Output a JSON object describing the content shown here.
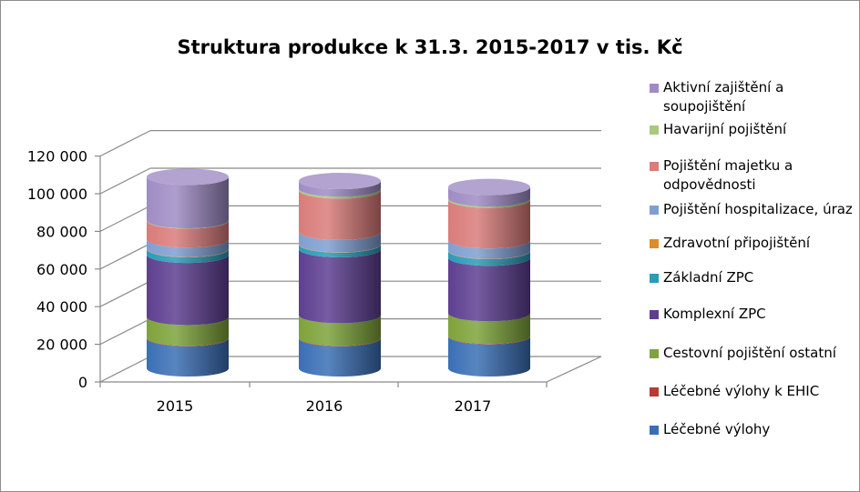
{
  "chart_data": {
    "type": "bar",
    "stacked": true,
    "three_d": true,
    "title": "Struktura produkce k 31.3. 2015-2017 v tis. Kč",
    "categories": [
      "2015",
      "2016",
      "2017"
    ],
    "ylim": [
      0,
      120000
    ],
    "yticks": [
      0,
      20000,
      40000,
      60000,
      80000,
      100000,
      120000
    ],
    "ytick_labels": [
      "0",
      "20 000",
      "40 000",
      "60 000",
      "80 000",
      "100 000",
      "120 000"
    ],
    "grid": true,
    "legend_position": "right",
    "series": [
      {
        "name": "Léčebné výlohy",
        "color": "#3a6fb5",
        "values": [
          16000,
          16000,
          17000
        ]
      },
      {
        "name": "Léčebné výlohy k EHIC",
        "color": "#b83a35",
        "values": [
          300,
          300,
          300
        ]
      },
      {
        "name": "Cestovní pojištění ostatní",
        "color": "#7ea33a",
        "values": [
          11000,
          12000,
          12000
        ]
      },
      {
        "name": "Komplexní ZPC",
        "color": "#5e3f91",
        "values": [
          33000,
          35000,
          29500
        ]
      },
      {
        "name": "Základní ZPC",
        "color": "#2a9bb8",
        "values": [
          3000,
          2500,
          3500
        ]
      },
      {
        "name": "Zdravotní připojištění",
        "color": "#e08a2c",
        "values": [
          200,
          200,
          200
        ]
      },
      {
        "name": "Pojištění hospitalizace, úraz",
        "color": "#7f9fd1",
        "values": [
          5000,
          6500,
          5500
        ]
      },
      {
        "name": "Pojištění majetku a odpovědnosti",
        "color": "#d97c7a",
        "values": [
          10000,
          22000,
          21500
        ]
      },
      {
        "name": "Havarijní pojištění",
        "color": "#a8c97e",
        "values": [
          200,
          1000,
          800
        ]
      },
      {
        "name": "Aktivní zajištění a soupojištění",
        "color": "#9f8cc4",
        "values": [
          23000,
          4000,
          6000
        ]
      }
    ]
  }
}
